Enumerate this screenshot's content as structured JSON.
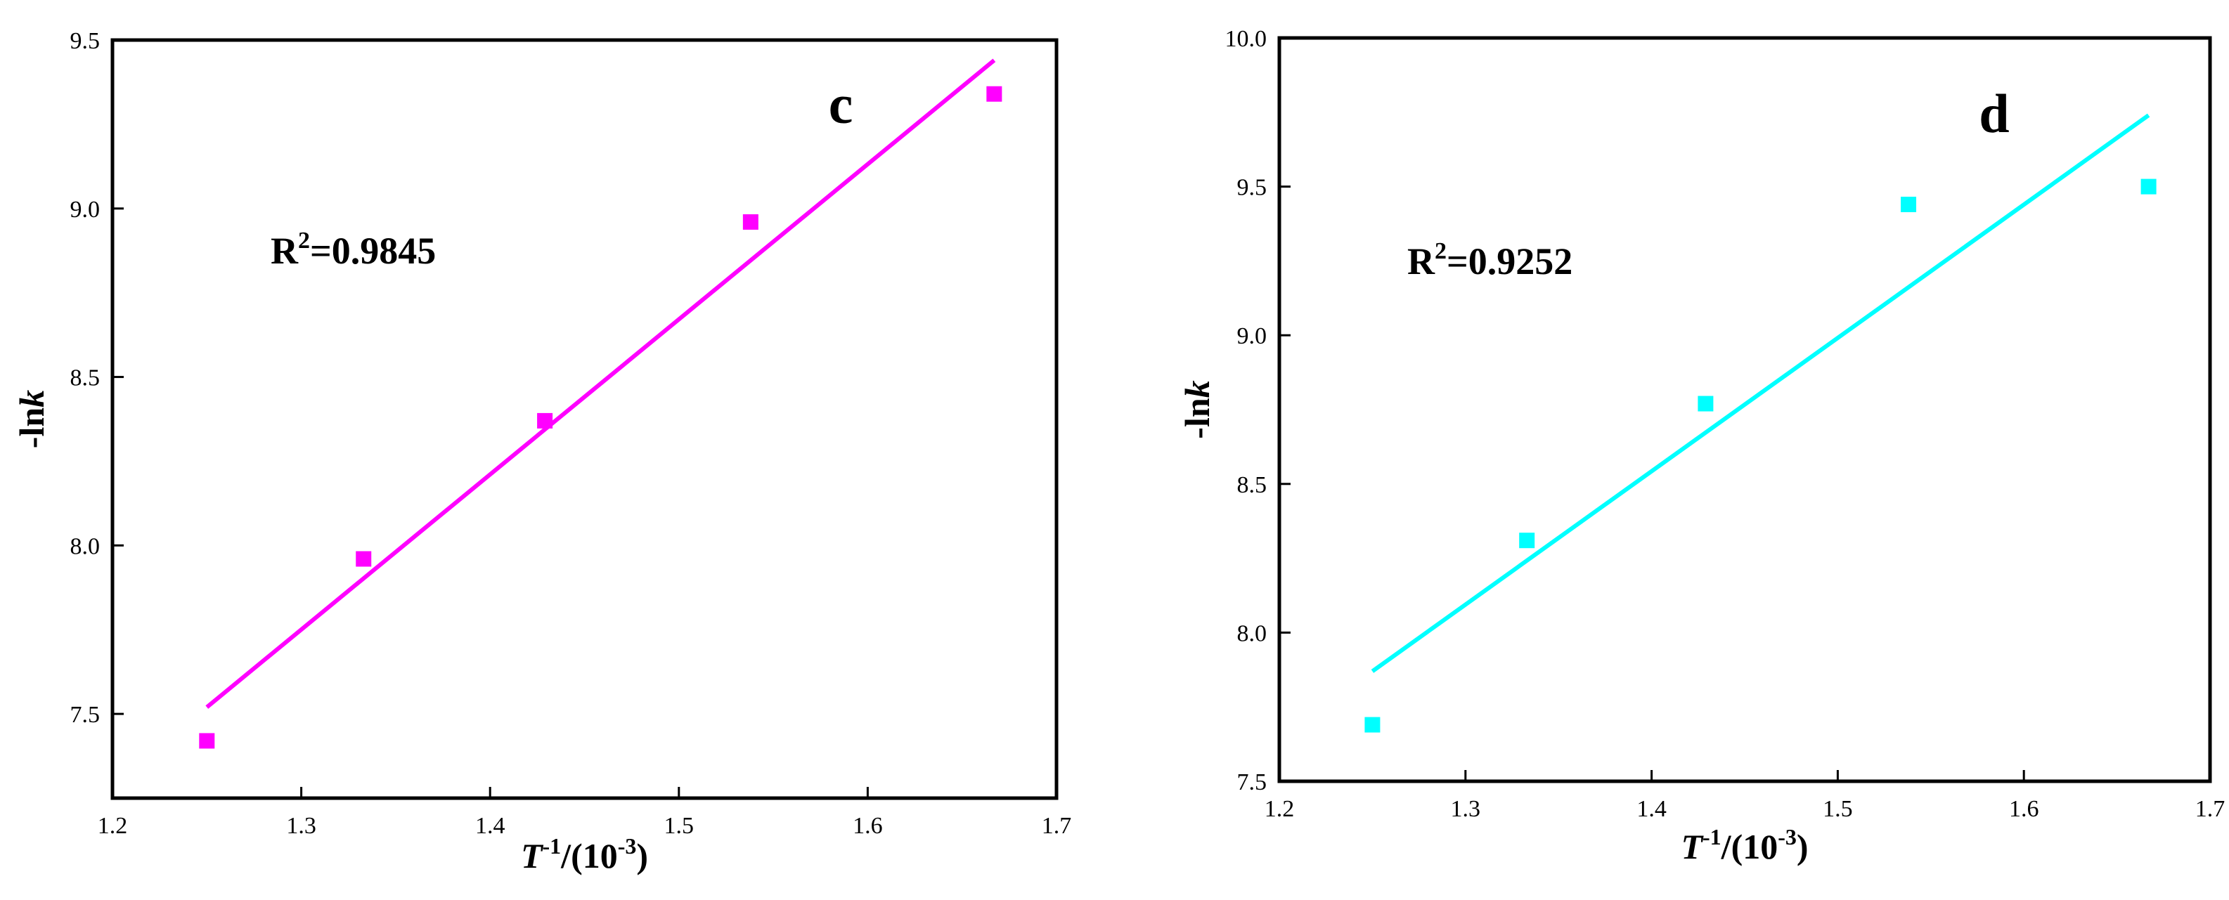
{
  "chart_data": [
    {
      "type": "scatter",
      "panel_label": "c",
      "annotation": {
        "prefix": "R",
        "sup": "2",
        "value": "=0.9845"
      },
      "xlabel": {
        "main": "T",
        "sup1": "-1",
        "mid": "/(10",
        "sup2": "-3",
        "end": ")"
      },
      "ylabel": {
        "prefix": "-ln",
        "italic": "k"
      },
      "xlim": [
        1.2,
        1.7
      ],
      "ylim": [
        7.25,
        9.5
      ],
      "xticks": [
        "1.2",
        "1.3",
        "1.4",
        "1.5",
        "1.6",
        "1.7"
      ],
      "yticks": [
        "7.5",
        "8.0",
        "8.5",
        "9.0",
        "9.5"
      ],
      "color": "#ff00ff",
      "series": [
        {
          "x": [
            1.25,
            1.333,
            1.429,
            1.538,
            1.667
          ],
          "y": [
            7.42,
            7.96,
            8.37,
            8.96,
            9.34
          ]
        }
      ],
      "fit": {
        "x": [
          1.25,
          1.667
        ],
        "y": [
          7.52,
          9.44
        ]
      },
      "grid": false,
      "legend": "none"
    },
    {
      "type": "scatter",
      "panel_label": "d",
      "annotation": {
        "prefix": "R",
        "sup": "2",
        "value": "=0.9252"
      },
      "xlabel": {
        "main": "T",
        "sup1": "-1",
        "mid": "/(10",
        "sup2": "-3",
        "end": ")"
      },
      "ylabel": {
        "prefix": "-ln",
        "italic": "k"
      },
      "xlim": [
        1.2,
        1.7
      ],
      "ylim": [
        7.5,
        10.0
      ],
      "xticks": [
        "1.2",
        "1.3",
        "1.4",
        "1.5",
        "1.6",
        "1.7"
      ],
      "yticks": [
        "7.5",
        "8.0",
        "8.5",
        "9.0",
        "9.5",
        "10.0"
      ],
      "color": "#00ffff",
      "series": [
        {
          "x": [
            1.25,
            1.333,
            1.429,
            1.538,
            1.667
          ],
          "y": [
            7.69,
            8.31,
            8.77,
            9.44,
            9.5
          ]
        }
      ],
      "fit": {
        "x": [
          1.25,
          1.667
        ],
        "y": [
          7.87,
          9.74
        ]
      },
      "grid": false,
      "legend": "none"
    }
  ]
}
